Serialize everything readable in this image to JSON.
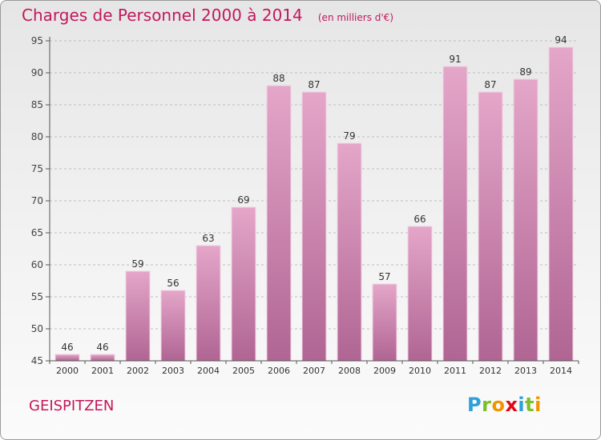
{
  "header": {
    "title": "Charges de Personnel 2000 à 2014",
    "subtitle": "(en milliers d'€)"
  },
  "footer": {
    "commune": "GEISPITZEN"
  },
  "logo": {
    "text": "Proxiti",
    "letter_colors": [
      "#2e9fd8",
      "#7bbf2a",
      "#f29400",
      "#e30613",
      "#2e9fd8",
      "#7bbf2a",
      "#f29400"
    ]
  },
  "colors": {
    "accent": "#c2185b",
    "bar_top": "#e4a6c9",
    "bar_bottom": "#b06593",
    "axis": "#555555",
    "grid": "#bdbdbd"
  },
  "chart_data": {
    "type": "bar",
    "title": "Charges de Personnel 2000 à 2014",
    "subtitle": "(en milliers d'€)",
    "xlabel": "",
    "ylabel": "",
    "categories": [
      "2000",
      "2001",
      "2002",
      "2003",
      "2004",
      "2005",
      "2006",
      "2007",
      "2008",
      "2009",
      "2010",
      "2011",
      "2012",
      "2013",
      "2014"
    ],
    "values": [
      46,
      46,
      59,
      56,
      63,
      69,
      88,
      87,
      79,
      57,
      66,
      91,
      87,
      89,
      94
    ],
    "ylim": [
      45,
      95
    ],
    "yticks": [
      45,
      50,
      55,
      60,
      65,
      70,
      75,
      80,
      85,
      90,
      95
    ],
    "grid": true,
    "data_labels": true
  }
}
